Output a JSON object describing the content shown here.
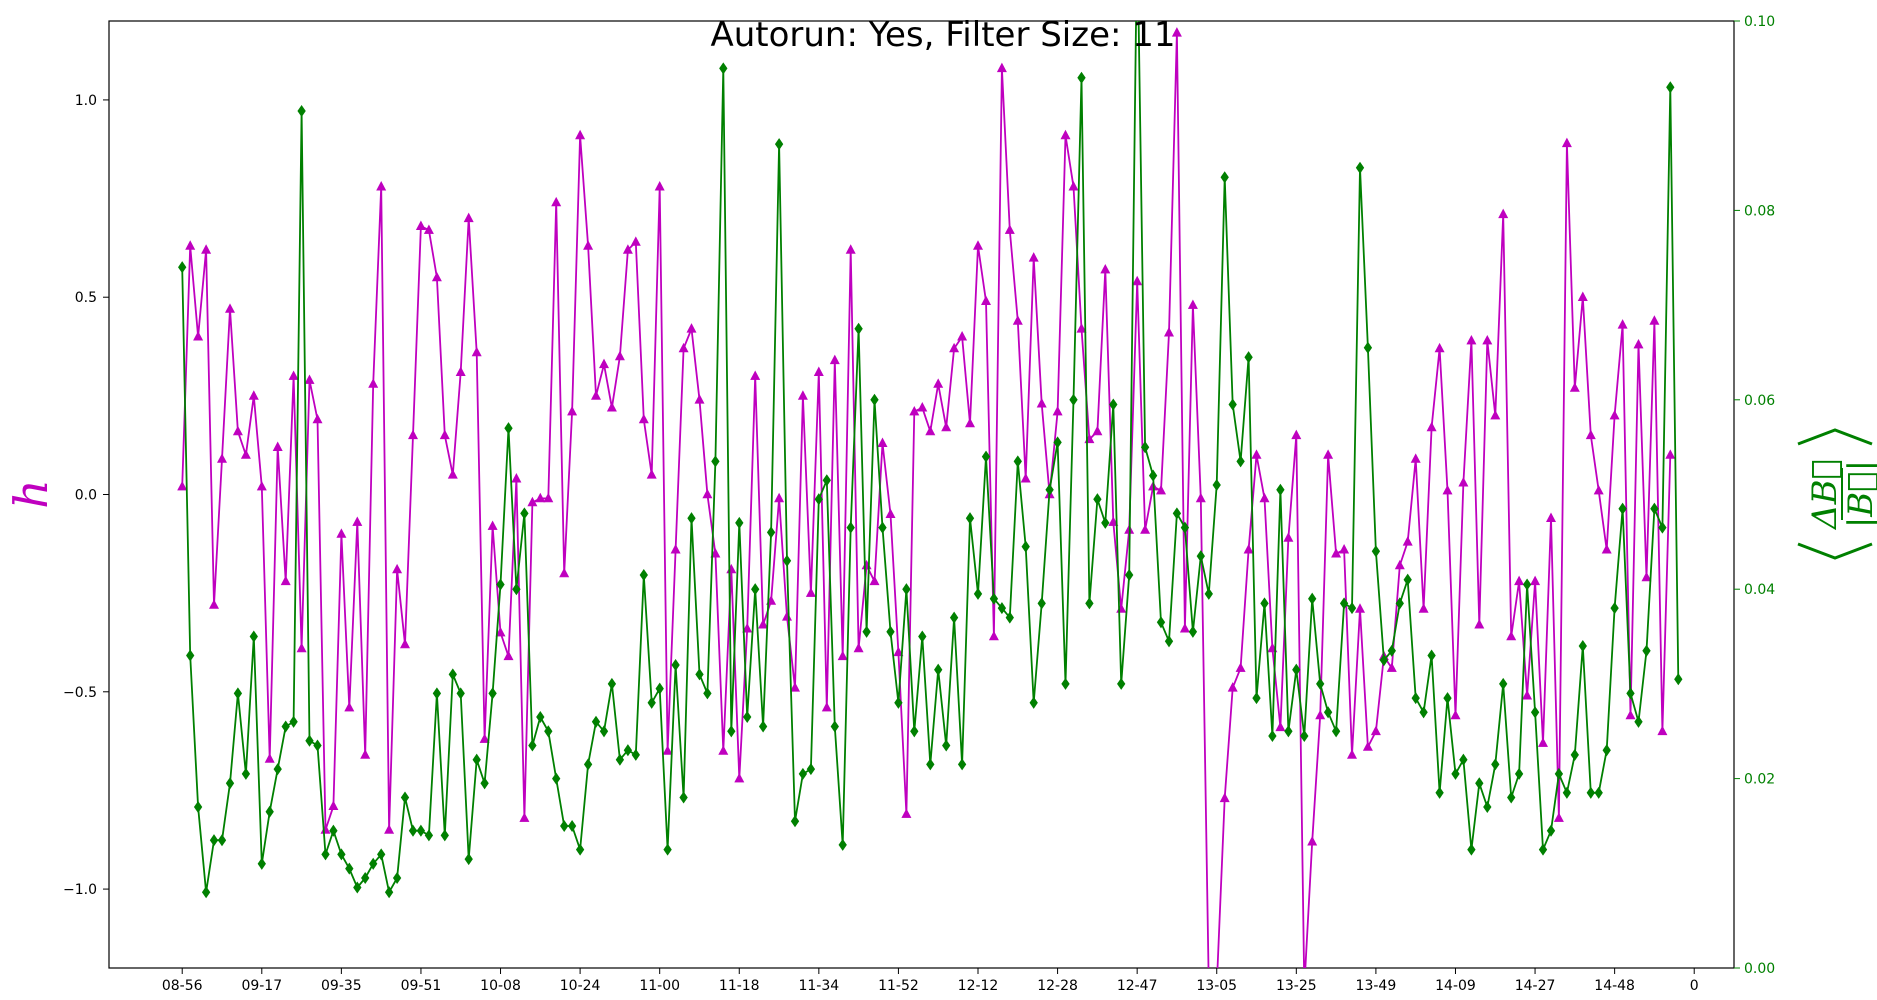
{
  "chart_data": {
    "type": "line",
    "title": "Autorun: Yes, Filter Size: 11",
    "grid": false,
    "legend": "none",
    "x_ticks": [
      "08-56",
      "09-17",
      "09-35",
      "09-51",
      "10-08",
      "10-24",
      "11-00",
      "11-18",
      "11-34",
      "11-52",
      "12-12",
      "12-28",
      "12-47",
      "13-05",
      "13-25",
      "13-49",
      "14-09",
      "14-27",
      "14-48",
      "0"
    ],
    "x_tick_positions": [
      0,
      10,
      20,
      30,
      40,
      50,
      60,
      70,
      80,
      90,
      100,
      110,
      120,
      130,
      140,
      150,
      160,
      170,
      180,
      190
    ],
    "xlim": [
      -9.2,
      195
    ],
    "left_axis": {
      "label": "h",
      "color": "#bf00bf",
      "ylim": [
        -1.2,
        1.2
      ],
      "ticks": [
        -1.0,
        -0.5,
        0.0,
        0.5,
        1.0
      ],
      "tick_labels": [
        "−1.0",
        "−0.5",
        "0.0",
        "0.5",
        "1.0"
      ]
    },
    "right_axis": {
      "label_top": "ΔB⃗",
      "label_bottom": "|B⃗|",
      "color": "#008000",
      "ylim": [
        0.0,
        0.1
      ],
      "ticks": [
        0.0,
        0.02,
        0.04,
        0.06,
        0.08,
        0.1
      ],
      "tick_labels": [
        "0.00",
        "0.02",
        "0.04",
        "0.06",
        "0.08",
        "0.10"
      ]
    },
    "series": [
      {
        "axis": "left",
        "color": "#bf00bf",
        "marker": "triangle",
        "x_start": 0,
        "values": [
          0.02,
          0.63,
          0.4,
          0.62,
          -0.28,
          0.09,
          0.47,
          0.16,
          0.1,
          0.25,
          0.02,
          -0.67,
          0.12,
          -0.22,
          0.3,
          -0.39,
          0.29,
          0.19,
          -0.85,
          -0.79,
          -0.1,
          -0.54,
          -0.07,
          -0.66,
          0.28,
          0.78,
          -0.85,
          -0.19,
          -0.38,
          0.15,
          0.68,
          0.67,
          0.55,
          0.15,
          0.05,
          0.31,
          0.7,
          0.36,
          -0.62,
          -0.08,
          -0.35,
          -0.41,
          0.04,
          -0.82,
          -0.02,
          -0.01,
          -0.01,
          0.74,
          -0.2,
          0.21,
          0.91,
          0.63,
          0.25,
          0.33,
          0.22,
          0.35,
          0.62,
          0.64,
          0.19,
          0.05,
          0.78,
          -0.65,
          -0.14,
          0.37,
          0.42,
          0.24,
          0.0,
          -0.15,
          -0.65,
          -0.19,
          -0.72,
          -0.34,
          0.3,
          -0.33,
          -0.27,
          -0.01,
          -0.31,
          -0.49,
          0.25,
          -0.25,
          0.31,
          -0.54,
          0.34,
          -0.41,
          0.62,
          -0.39,
          -0.18,
          -0.22,
          0.13,
          -0.05,
          -0.4,
          -0.81,
          0.21,
          0.22,
          0.16,
          0.28,
          0.17,
          0.37,
          0.4,
          0.18,
          0.63,
          0.49,
          -0.36,
          1.08,
          0.67,
          0.44,
          0.04,
          0.6,
          0.23,
          0.0,
          0.21,
          0.91,
          0.78,
          0.42,
          0.14,
          0.16,
          0.57,
          -0.07,
          -0.29,
          -0.09,
          0.54,
          -0.09,
          0.02,
          0.01,
          0.41,
          1.17,
          -0.34,
          0.48,
          -0.01,
          -1.25,
          -1.25,
          -0.77,
          -0.49,
          -0.44,
          -0.14,
          0.1,
          -0.01,
          -0.39,
          -0.59,
          -0.11,
          0.15,
          -1.25,
          -0.88,
          -0.56,
          0.1,
          -0.15,
          -0.14,
          -0.66,
          -0.29,
          -0.64,
          -0.6,
          -0.41,
          -0.44,
          -0.18,
          -0.12,
          0.09,
          -0.29,
          0.17,
          0.37,
          0.01,
          -0.56,
          0.03,
          0.39,
          -0.33,
          0.39,
          0.2,
          0.71,
          -0.36,
          -0.22,
          -0.51,
          -0.22,
          -0.63,
          -0.06,
          -0.82,
          0.89,
          0.27,
          0.5,
          0.15,
          0.01,
          -0.14,
          0.2,
          0.43,
          -0.56,
          0.38,
          -0.21,
          0.44,
          -0.6,
          0.1
        ]
      },
      {
        "axis": "right",
        "color": "#008000",
        "marker": "diamond",
        "x_start": 0,
        "values": [
          0.074,
          0.033,
          0.017,
          0.008,
          0.0135,
          0.0135,
          0.0195,
          0.029,
          0.0205,
          0.035,
          0.011,
          0.0165,
          0.021,
          0.0255,
          0.026,
          0.0905,
          0.024,
          0.0235,
          0.012,
          0.0145,
          0.012,
          0.0105,
          0.0085,
          0.0095,
          0.011,
          0.012,
          0.008,
          0.0095,
          0.018,
          0.0145,
          0.0145,
          0.014,
          0.029,
          0.014,
          0.031,
          0.029,
          0.0115,
          0.022,
          0.0195,
          0.029,
          0.0405,
          0.057,
          0.04,
          0.048,
          0.0235,
          0.0265,
          0.025,
          0.02,
          0.015,
          0.015,
          0.0125,
          0.0215,
          0.026,
          0.025,
          0.03,
          0.022,
          0.023,
          0.0225,
          0.0415,
          0.028,
          0.0295,
          0.0125,
          0.032,
          0.018,
          0.0475,
          0.031,
          0.029,
          0.0535,
          0.095,
          0.025,
          0.047,
          0.0265,
          0.04,
          0.0255,
          0.046,
          0.087,
          0.043,
          0.0155,
          0.0205,
          0.021,
          0.0495,
          0.0515,
          0.0255,
          0.013,
          0.0465,
          0.0675,
          0.0355,
          0.06,
          0.0465,
          0.0355,
          0.028,
          0.04,
          0.025,
          0.035,
          0.0215,
          0.0315,
          0.0235,
          0.037,
          0.0215,
          0.0475,
          0.0395,
          0.054,
          0.039,
          0.038,
          0.037,
          0.0535,
          0.0445,
          0.028,
          0.0385,
          0.0505,
          0.0555,
          0.03,
          0.06,
          0.094,
          0.0385,
          0.0495,
          0.047,
          0.0595,
          0.03,
          0.0415,
          0.11,
          0.055,
          0.052,
          0.0365,
          0.0345,
          0.048,
          0.0465,
          0.0355,
          0.0435,
          0.0395,
          0.051,
          0.0835,
          0.0595,
          0.0535,
          0.0645,
          0.0285,
          0.0385,
          0.0245,
          0.0505,
          0.025,
          0.0315,
          0.0245,
          0.039,
          0.03,
          0.027,
          0.025,
          0.0385,
          0.038,
          0.0845,
          0.0655,
          0.044,
          0.0325,
          0.0335,
          0.0385,
          0.041,
          0.0285,
          0.027,
          0.033,
          0.0185,
          0.0285,
          0.0205,
          0.022,
          0.0125,
          0.0195,
          0.017,
          0.0215,
          0.03,
          0.018,
          0.0205,
          0.0405,
          0.027,
          0.0125,
          0.0145,
          0.0205,
          0.0185,
          0.0225,
          0.034,
          0.0185,
          0.0185,
          0.023,
          0.038,
          0.0485,
          0.029,
          0.026,
          0.0335,
          0.0485,
          0.0465,
          0.093,
          0.0305
        ]
      }
    ]
  }
}
